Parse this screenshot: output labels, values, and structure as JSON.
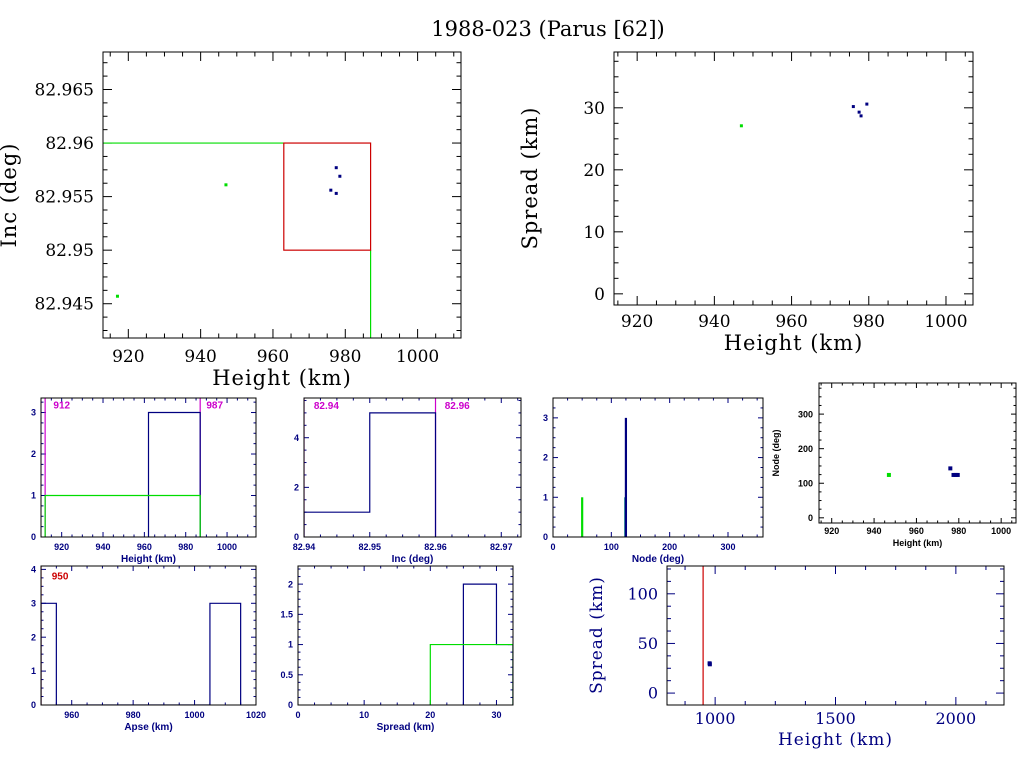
{
  "page": {
    "title": "1988-023 (Parus [62])"
  },
  "colors": {
    "axis": "#000000",
    "navy": "#000080",
    "green": "#00dd00",
    "red": "#cc0000",
    "magenta": "#cc00cc",
    "teal": "#008080"
  },
  "chart_data": [
    {
      "id": "inc_vs_height",
      "type": "scatter",
      "xlabel": "Height (km)",
      "ylabel": "Inc (deg)",
      "xlim": [
        913,
        1012
      ],
      "ylim": [
        82.9418,
        82.9685
      ],
      "xticks": [
        920,
        940,
        960,
        980,
        1000
      ],
      "xtick_labels": [
        "920",
        "940",
        "960",
        "980",
        "1000"
      ],
      "yticks": [
        82.945,
        82.95,
        82.955,
        82.96,
        82.965
      ],
      "ytick_labels": [
        "82.945",
        "82.95",
        "82.955",
        "82.96",
        "82.965"
      ],
      "series": [
        {
          "color": "green",
          "points": [
            [
              947,
              82.9561
            ],
            [
              917,
              82.9457
            ]
          ]
        },
        {
          "color": "navy",
          "points": [
            [
              977.5,
              82.9577
            ],
            [
              978.5,
              82.9569
            ],
            [
              976,
              82.9556
            ],
            [
              977.5,
              82.9553
            ]
          ]
        }
      ],
      "box": {
        "color": "red",
        "x": [
          963,
          987
        ],
        "y": [
          82.95,
          82.96
        ]
      },
      "guide_lines": [
        {
          "color": "green",
          "points": [
            [
              913,
              82.96
            ],
            [
              963,
              82.96
            ]
          ]
        },
        {
          "color": "green",
          "points": [
            [
              987,
              82.95
            ],
            [
              987,
              82.9418
            ]
          ]
        }
      ]
    },
    {
      "id": "spread_vs_height",
      "type": "scatter",
      "xlabel": "Height (km)",
      "ylabel": "Spread (km)",
      "xlim": [
        914,
        1007
      ],
      "ylim": [
        -1.8,
        39
      ],
      "xticks": [
        920,
        940,
        960,
        980,
        1000
      ],
      "xtick_labels": [
        "920",
        "940",
        "960",
        "980",
        "1000"
      ],
      "yticks": [
        0,
        10,
        20,
        30
      ],
      "ytick_labels": [
        "0",
        "10",
        "20",
        "30"
      ],
      "series": [
        {
          "color": "green",
          "points": [
            [
              947,
              27.1
            ]
          ]
        },
        {
          "color": "navy",
          "points": [
            [
              976,
              30.2
            ],
            [
              977.5,
              29.3
            ],
            [
              978,
              28.7
            ],
            [
              979.5,
              30.6
            ]
          ]
        }
      ]
    },
    {
      "id": "height_histogram",
      "type": "histogram",
      "xlabel": "Height (km)",
      "ylabel": "",
      "xlim": [
        910,
        1014
      ],
      "ylim": [
        0,
        3.35
      ],
      "xticks": [
        920,
        940,
        960,
        980,
        1000
      ],
      "xtick_labels": [
        "920",
        "940",
        "960",
        "980",
        "1000"
      ],
      "yticks": [
        0,
        1,
        2,
        3
      ],
      "ytick_labels": [
        "0",
        "1",
        "2",
        "3"
      ],
      "steps": [
        {
          "color": "navy",
          "edges": [
            962,
            987
          ],
          "values": [
            3
          ]
        },
        {
          "color": "green",
          "edges": [
            912,
            987
          ],
          "values": [
            1
          ]
        }
      ],
      "vlines": [
        {
          "x": 912,
          "color": "magenta"
        },
        {
          "x": 987,
          "color": "magenta"
        }
      ],
      "annotations": [
        {
          "text": "912",
          "color": "magenta",
          "x": 916,
          "y": 3.1
        },
        {
          "text": "987",
          "color": "magenta",
          "x": 990,
          "y": 3.1
        }
      ]
    },
    {
      "id": "inc_histogram",
      "type": "histogram",
      "xlabel": "Inc (deg)",
      "ylabel": "",
      "xlim": [
        82.94,
        82.973
      ],
      "ylim": [
        0,
        5.6
      ],
      "xticks": [
        82.94,
        82.95,
        82.96,
        82.97
      ],
      "xtick_labels": [
        "82.94",
        "82.95",
        "82.96",
        "82.97"
      ],
      "yticks": [
        0,
        2,
        4
      ],
      "ytick_labels": [
        "0",
        "2",
        "4"
      ],
      "steps": [
        {
          "color": "navy",
          "edges": [
            82.94,
            82.95,
            82.96
          ],
          "values": [
            1,
            5
          ]
        }
      ],
      "vlines": [
        {
          "x": 82.94,
          "color": "magenta"
        },
        {
          "x": 82.96,
          "color": "magenta"
        }
      ],
      "annotations": [
        {
          "text": "82.94",
          "color": "magenta",
          "x": 82.9415,
          "y": 5.15
        },
        {
          "text": "82.96",
          "color": "magenta",
          "x": 82.9614,
          "y": 5.15
        }
      ]
    },
    {
      "id": "node_histogram",
      "type": "histogram",
      "xlabel": "Node (deg)",
      "ylabel": "",
      "xlim": [
        0,
        360
      ],
      "ylim": [
        0,
        3.5
      ],
      "xticks": [
        0,
        100,
        200,
        300
      ],
      "xtick_labels": [
        "0",
        "100",
        "200",
        "300"
      ],
      "yticks": [
        0,
        1,
        2,
        3
      ],
      "ytick_labels": [
        "0",
        "1",
        "2",
        "3"
      ],
      "bars": [
        {
          "x": 50,
          "value": 1,
          "color": "green"
        },
        {
          "x": 124,
          "value": 1,
          "color": "teal"
        },
        {
          "x": 125,
          "value": 3,
          "color": "navy"
        }
      ]
    },
    {
      "id": "node_vs_height",
      "type": "scatter",
      "xlabel": "Height (km)",
      "ylabel": "Node (deg)",
      "xlim": [
        914,
        1007
      ],
      "ylim": [
        -15,
        390
      ],
      "xticks": [
        920,
        940,
        960,
        980,
        1000
      ],
      "xtick_labels": [
        "920",
        "940",
        "960",
        "980",
        "1000"
      ],
      "yticks": [
        0,
        100,
        200,
        300
      ],
      "ytick_labels": [
        "0",
        "100",
        "200",
        "300"
      ],
      "series": [
        {
          "color": "green",
          "points": [
            [
              947,
              124
            ]
          ]
        },
        {
          "color": "navy",
          "points": [
            [
              976,
              143
            ],
            [
              977.5,
              124
            ],
            [
              978.5,
              124
            ],
            [
              979.5,
              124
            ]
          ]
        }
      ]
    },
    {
      "id": "apse_histogram",
      "type": "histogram",
      "xlabel": "Apse (km)",
      "ylabel": "",
      "xlim": [
        950,
        1020
      ],
      "ylim": [
        0,
        4.1
      ],
      "xticks": [
        960,
        980,
        1000,
        1020
      ],
      "xtick_labels": [
        "960",
        "980",
        "1000",
        "1020"
      ],
      "yticks": [
        0,
        1,
        2,
        3,
        4
      ],
      "ytick_labels": [
        "0",
        "1",
        "2",
        "3",
        "4"
      ],
      "steps": [
        {
          "color": "navy",
          "edges": [
            950,
            955,
            1005,
            1015
          ],
          "values": [
            3,
            0,
            3
          ]
        }
      ],
      "vlines": [
        {
          "x": 950,
          "color": "red"
        }
      ],
      "annotations": [
        {
          "text": "950",
          "color": "red",
          "x": 953.5,
          "y": 3.7
        }
      ]
    },
    {
      "id": "spread_histogram",
      "type": "histogram",
      "xlabel": "Spread (km)",
      "ylabel": "",
      "xlim": [
        0,
        32.5
      ],
      "ylim": [
        0,
        2.3
      ],
      "xticks": [
        0,
        10,
        20,
        30
      ],
      "xtick_labels": [
        "0",
        "10",
        "20",
        "30"
      ],
      "yticks": [
        0,
        0.5,
        1,
        1.5,
        2
      ],
      "ytick_labels": [
        "0",
        "0.5",
        "1",
        "1.5",
        "2"
      ],
      "steps": [
        {
          "color": "navy",
          "edges": [
            25,
            30,
            32.5
          ],
          "values": [
            2,
            1
          ]
        },
        {
          "color": "green",
          "edges": [
            20,
            32.5
          ],
          "values": [
            1
          ]
        }
      ]
    },
    {
      "id": "spread_vs_height_wide",
      "type": "scatter",
      "xlabel": "Height (km)",
      "ylabel": "Spread (km)",
      "xlim": [
        800,
        2200
      ],
      "ylim": [
        -12,
        128
      ],
      "xticks": [
        1000,
        1500,
        2000
      ],
      "xtick_labels": [
        "1000",
        "1500",
        "2000"
      ],
      "yticks": [
        0,
        50,
        100
      ],
      "ytick_labels": [
        "0",
        "50",
        "100"
      ],
      "series": [
        {
          "color": "navy",
          "points": [
            [
              977,
              30
            ],
            [
              978,
              29
            ]
          ]
        }
      ],
      "vlines": [
        {
          "x": 950,
          "color": "red"
        }
      ]
    }
  ]
}
